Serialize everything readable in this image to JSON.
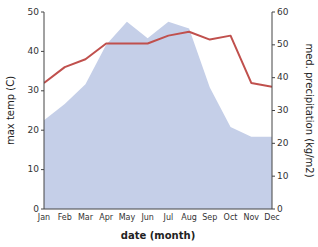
{
  "chart_data": {
    "type": "line",
    "xlabel": "date (month)",
    "ylabel": "max temp (C)",
    "y2label": "med. precipitation (kg/m2)",
    "categories": [
      "Jan",
      "Feb",
      "Mar",
      "Apr",
      "May",
      "Jun",
      "Jul",
      "Aug",
      "Sep",
      "Oct",
      "Nov",
      "Dec"
    ],
    "series": [
      {
        "type": "area",
        "axis": "y2",
        "color": "#c5cfe8",
        "values": [
          27,
          32,
          38,
          50,
          57,
          52,
          57,
          55,
          37,
          25,
          22,
          22
        ]
      },
      {
        "type": "line",
        "color": "#c0504d",
        "values": [
          32,
          36,
          38,
          42,
          42,
          42,
          44,
          45,
          43,
          44,
          32,
          31
        ]
      }
    ],
    "ylim": [
      0,
      50
    ],
    "yticks": [
      0,
      10,
      20,
      30,
      40,
      50
    ],
    "y2lim": [
      0,
      60
    ],
    "y2ticks": [
      0,
      10,
      20,
      30,
      40,
      50,
      60
    ],
    "grid": false
  }
}
